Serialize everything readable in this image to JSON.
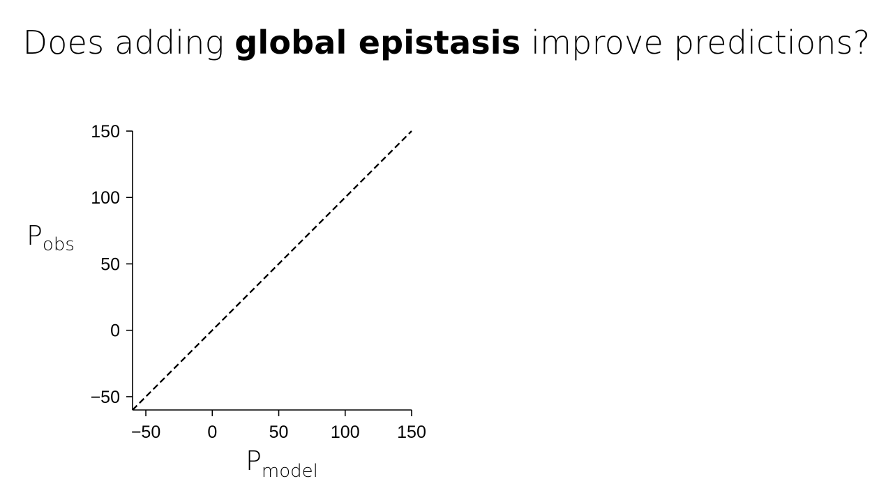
{
  "slide": {
    "title_pre": "Does adding ",
    "title_bold": "global epistasis",
    "title_post": " improve predictions?"
  },
  "chart_data": {
    "type": "line",
    "title": "",
    "xlabel": {
      "main": "P",
      "sub": "model"
    },
    "ylabel": {
      "main": "P",
      "sub": "obs"
    },
    "xlim": [
      -60,
      150
    ],
    "ylim": [
      -60,
      150
    ],
    "xticks": [
      -50,
      0,
      50,
      100,
      150
    ],
    "yticks": [
      -50,
      0,
      50,
      100,
      150
    ],
    "xtick_labels": [
      "−50",
      "0",
      "50",
      "100",
      "150"
    ],
    "ytick_labels": [
      "−50",
      "0",
      "50",
      "100",
      "150"
    ],
    "grid": false,
    "series": [
      {
        "style": "dashed",
        "color": "#000000",
        "x": [
          -60,
          150
        ],
        "y": [
          -60,
          150
        ]
      }
    ]
  }
}
